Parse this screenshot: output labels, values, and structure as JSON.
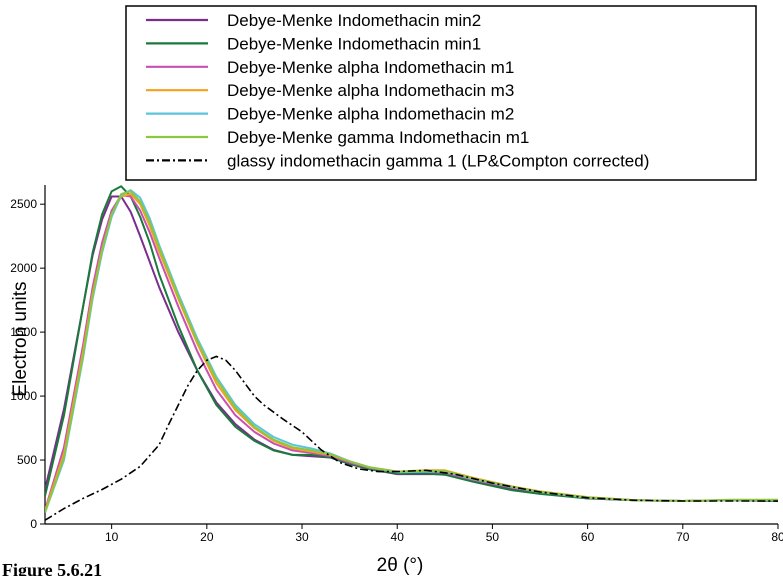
{
  "figure_caption": "Figure 5.6.21",
  "chart_data": {
    "type": "line",
    "xlabel": "2θ (°)",
    "ylabel": "Electron units",
    "xlim": [
      3,
      80
    ],
    "ylim": [
      0,
      2650
    ],
    "xticks": [
      10,
      20,
      30,
      40,
      50,
      60,
      70,
      80
    ],
    "yticks": [
      0,
      500,
      1000,
      1500,
      2000,
      2500
    ],
    "grid": false,
    "legend_position": "top",
    "series": [
      {
        "name": "Debye-Menke Indomethacin min2",
        "color": "#7b2d8b",
        "dash": "solid",
        "x": [
          3,
          5,
          7,
          8,
          9,
          10,
          11,
          12,
          13,
          14,
          15,
          17,
          19,
          21,
          23,
          25,
          27,
          29,
          31,
          33,
          35,
          37,
          40,
          43,
          45,
          48,
          52,
          55,
          60,
          65,
          70,
          75,
          80
        ],
        "y": [
          270,
          900,
          1700,
          2100,
          2380,
          2560,
          2560,
          2440,
          2250,
          2050,
          1850,
          1500,
          1200,
          950,
          780,
          660,
          580,
          540,
          530,
          520,
          470,
          430,
          390,
          390,
          390,
          340,
          270,
          240,
          200,
          185,
          180,
          185,
          180
        ]
      },
      {
        "name": "Debye-Menke Indomethacin min1",
        "color": "#1a7a3c",
        "dash": "solid",
        "x": [
          3,
          5,
          7,
          8,
          9,
          10,
          11,
          12,
          13,
          14,
          15,
          17,
          19,
          21,
          23,
          25,
          27,
          29,
          31,
          33,
          35,
          37,
          40,
          43,
          45,
          48,
          52,
          55,
          60,
          65,
          70,
          75,
          80
        ],
        "y": [
          220,
          850,
          1700,
          2120,
          2420,
          2600,
          2640,
          2560,
          2400,
          2200,
          1950,
          1550,
          1200,
          930,
          760,
          650,
          575,
          540,
          540,
          520,
          470,
          430,
          395,
          395,
          385,
          330,
          265,
          235,
          200,
          185,
          180,
          185,
          180
        ]
      },
      {
        "name": "Debye-Menke alpha Indomethacin m1",
        "color": "#c94fb3",
        "dash": "solid",
        "x": [
          3,
          5,
          7,
          8,
          9,
          10,
          11,
          12,
          13,
          14,
          15,
          17,
          19,
          21,
          23,
          25,
          27,
          29,
          31,
          33,
          35,
          37,
          40,
          43,
          45,
          48,
          52,
          55,
          60,
          65,
          70,
          75,
          80
        ],
        "y": [
          110,
          600,
          1400,
          1850,
          2200,
          2450,
          2570,
          2560,
          2450,
          2280,
          2080,
          1700,
          1350,
          1050,
          850,
          720,
          630,
          575,
          555,
          530,
          480,
          440,
          405,
          410,
          400,
          345,
          285,
          250,
          205,
          185,
          180,
          185,
          185
        ]
      },
      {
        "name": "Debye-Menke alpha Indomethacin m3",
        "color": "#f5a020",
        "dash": "solid",
        "x": [
          3,
          5,
          7,
          8,
          9,
          10,
          11,
          12,
          13,
          14,
          15,
          17,
          19,
          21,
          23,
          25,
          27,
          29,
          31,
          33,
          35,
          37,
          40,
          43,
          45,
          48,
          52,
          55,
          60,
          65,
          70,
          75,
          80
        ],
        "y": [
          100,
          550,
          1350,
          1800,
          2150,
          2420,
          2560,
          2580,
          2500,
          2330,
          2130,
          1760,
          1410,
          1100,
          890,
          750,
          650,
          590,
          565,
          540,
          490,
          445,
          410,
          420,
          420,
          360,
          295,
          255,
          210,
          185,
          180,
          185,
          185
        ]
      },
      {
        "name": "Debye-Menke alpha Indomethacin m2",
        "color": "#5bc4dc",
        "dash": "solid",
        "x": [
          3,
          5,
          7,
          8,
          9,
          10,
          11,
          12,
          13,
          14,
          15,
          17,
          19,
          21,
          23,
          25,
          27,
          29,
          31,
          33,
          35,
          37,
          40,
          43,
          45,
          48,
          52,
          55,
          60,
          65,
          70,
          75,
          80
        ],
        "y": [
          90,
          500,
          1300,
          1760,
          2120,
          2400,
          2570,
          2610,
          2550,
          2390,
          2180,
          1800,
          1450,
          1150,
          930,
          780,
          680,
          620,
          590,
          550,
          490,
          445,
          405,
          410,
          410,
          350,
          290,
          250,
          205,
          185,
          180,
          185,
          185
        ]
      },
      {
        "name": "Debye-Menke gamma Indomethacin m1",
        "color": "#8dc63f",
        "dash": "solid",
        "x": [
          3,
          5,
          7,
          8,
          9,
          10,
          11,
          12,
          13,
          14,
          15,
          17,
          19,
          21,
          23,
          25,
          27,
          29,
          31,
          33,
          35,
          37,
          40,
          43,
          45,
          48,
          52,
          55,
          60,
          65,
          70,
          75,
          80
        ],
        "y": [
          90,
          520,
          1320,
          1780,
          2140,
          2420,
          2580,
          2600,
          2520,
          2360,
          2160,
          1780,
          1430,
          1130,
          910,
          760,
          660,
          600,
          575,
          545,
          490,
          445,
          410,
          415,
          415,
          355,
          292,
          252,
          208,
          185,
          180,
          190,
          190
        ]
      },
      {
        "name": "glassy indomethacin gamma 1 (LP&Compton corrected)",
        "color": "#000000",
        "dash": "dashdot",
        "x": [
          3,
          5,
          7,
          9,
          11,
          13,
          15,
          16,
          17,
          18,
          19,
          20,
          21,
          22,
          23,
          24,
          25,
          26,
          28,
          30,
          32,
          34,
          36,
          38,
          40,
          43,
          46,
          50,
          55,
          60,
          65,
          70,
          75,
          80
        ],
        "y": [
          30,
          120,
          200,
          270,
          350,
          450,
          620,
          780,
          930,
          1080,
          1200,
          1280,
          1310,
          1280,
          1200,
          1100,
          1000,
          930,
          820,
          720,
          580,
          480,
          430,
          410,
          410,
          420,
          390,
          320,
          250,
          205,
          185,
          180,
          180,
          180
        ]
      }
    ]
  }
}
